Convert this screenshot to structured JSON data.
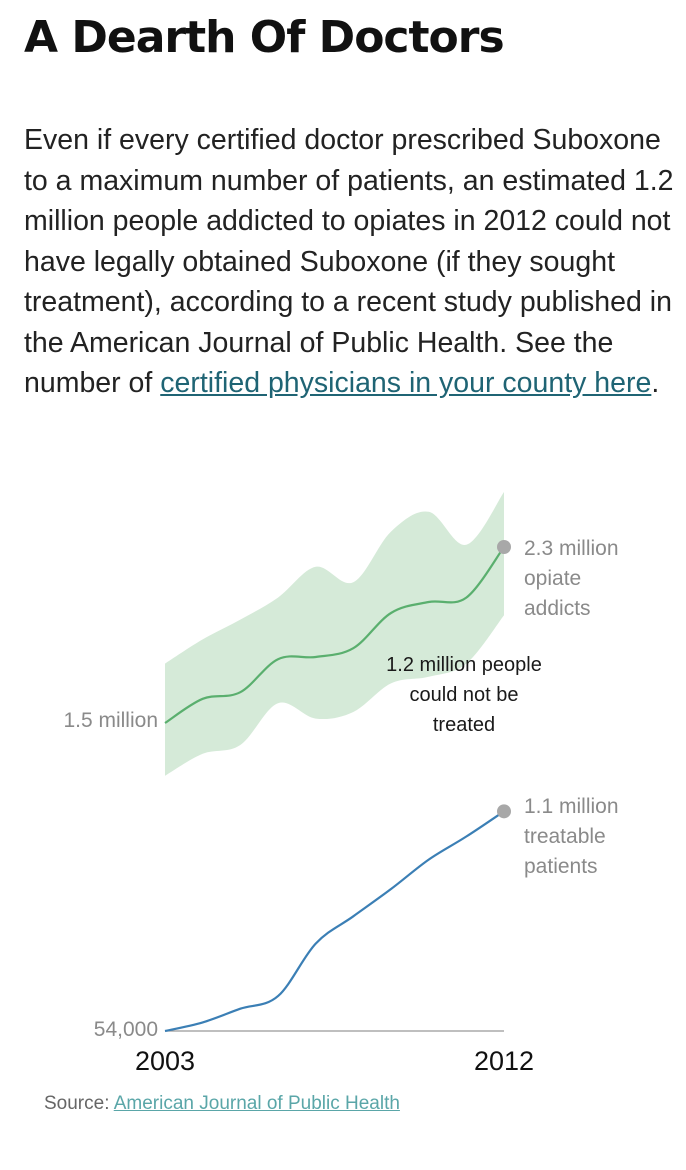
{
  "headline": "A Dearth Of Doctors",
  "dek": {
    "text": "Even if every certified doctor prescribed Suboxone to a maximum number of patients, an estimated 1.2 million people addicted to opiates in 2012 could not have legally obtained Suboxone (if they sought treatment), according to a recent study published in the American Journal of Public Health. See the number of ",
    "link_text": "certified physicians in your county here",
    "trailing": "."
  },
  "source": {
    "label": "Source: ",
    "link_text": "American Journal of Public Health"
  },
  "colors": {
    "addicts_line": "#5aaf6e",
    "addicts_band": "#d5ead8",
    "treatable_line": "#3b7fb5",
    "endpoint_dot": "#a8a8a8",
    "baseline": "#999999"
  },
  "chart_data": {
    "type": "line",
    "x_range": [
      2003,
      2012
    ],
    "x_ticks": [
      "2003",
      "2012"
    ],
    "series": [
      {
        "key": "opiate_addicts",
        "x": [
          2003,
          2004,
          2005,
          2006,
          2007,
          2008,
          2009,
          2010,
          2011,
          2012
        ],
        "values": [
          1.5,
          1.61,
          1.64,
          1.79,
          1.8,
          1.84,
          2.0,
          2.05,
          2.07,
          2.3
        ],
        "band_upper": [
          1.77,
          1.88,
          1.97,
          2.07,
          2.21,
          2.14,
          2.37,
          2.46,
          2.31,
          2.55
        ],
        "band_lower": [
          1.26,
          1.36,
          1.4,
          1.59,
          1.52,
          1.55,
          1.68,
          1.71,
          1.77,
          1.99
        ],
        "start_label": "1.5 million",
        "end_label": [
          "2.3 million",
          "opiate",
          "addicts"
        ]
      },
      {
        "key": "treatable_patients",
        "x": [
          2003,
          2004,
          2005,
          2006,
          2007,
          2008,
          2009,
          2010,
          2011,
          2012
        ],
        "values": [
          0.054,
          0.095,
          0.16,
          0.22,
          0.47,
          0.6,
          0.73,
          0.87,
          0.98,
          1.1
        ],
        "start_label": "54,000",
        "end_label": [
          "1.1 million",
          "treatable",
          "patients"
        ]
      }
    ],
    "gap_annotation": [
      "1.2 million people",
      "could not be",
      "treated"
    ]
  }
}
